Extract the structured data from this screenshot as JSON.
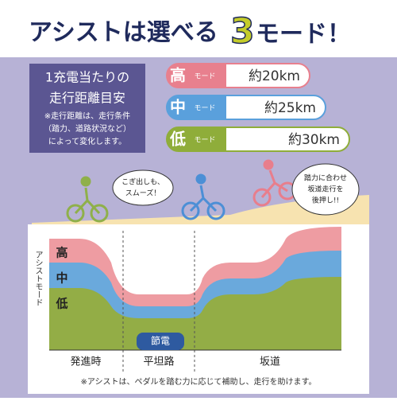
{
  "header": {
    "title_prefix": "アシストは選べる",
    "title_number": "3",
    "title_suffix": "モード！"
  },
  "info": {
    "lines": [
      "1充電当たりの",
      "走行距離目安"
    ],
    "note": [
      "※走行距離は、走行条件",
      "（踏力、道路状況など）",
      "によって変化します。"
    ]
  },
  "modes": [
    {
      "label": "高",
      "sub": "モード",
      "range": "約20km"
    },
    {
      "label": "中",
      "sub": "モード",
      "range": "約25km"
    },
    {
      "label": "低",
      "sub": "モード",
      "range": "約30km"
    }
  ],
  "bubbles": [
    {
      "lines": [
        "こぎ出しも、",
        "スムーズ！"
      ]
    },
    {
      "lines": [
        "踏力に合わせ",
        "坂道走行を",
        "後押し!!"
      ]
    }
  ],
  "diagram": {
    "axis_label": "アシストモード",
    "saving": "節電",
    "sections": [
      "発進時",
      "平坦路",
      "坂道"
    ]
  },
  "footnote": "※アシストは、ペダルを踏む力に応じて補助し、走行を助けます。"
}
